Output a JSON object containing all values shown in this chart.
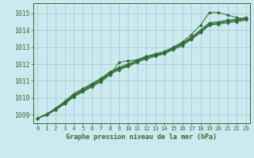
{
  "title": "Graphe pression niveau de la mer (hPa)",
  "bg_color": "#cce8f0",
  "grid_color": "#99cccc",
  "line_color": "#2d6e2d",
  "xlim": [
    -0.5,
    23.5
  ],
  "ylim": [
    1008.5,
    1015.6
  ],
  "yticks": [
    1009,
    1010,
    1011,
    1012,
    1013,
    1014,
    1015
  ],
  "xticks": [
    0,
    1,
    2,
    3,
    4,
    5,
    6,
    7,
    8,
    9,
    10,
    11,
    12,
    13,
    14,
    15,
    16,
    17,
    18,
    19,
    20,
    21,
    22,
    23
  ],
  "series": [
    [
      1008.8,
      1009.0,
      1009.3,
      1009.65,
      1010.05,
      1010.35,
      1010.65,
      1010.95,
      1011.35,
      1012.1,
      1012.2,
      1012.25,
      1012.45,
      1012.55,
      1012.65,
      1013.0,
      1013.3,
      1013.75,
      1014.3,
      1015.05,
      1015.05,
      1014.9,
      1014.75,
      1014.65
    ],
    [
      1008.8,
      1009.0,
      1009.3,
      1009.65,
      1010.1,
      1010.4,
      1010.7,
      1011.0,
      1011.4,
      1011.65,
      1011.85,
      1012.1,
      1012.3,
      1012.45,
      1012.6,
      1012.85,
      1013.1,
      1013.45,
      1013.85,
      1014.3,
      1014.35,
      1014.45,
      1014.5,
      1014.6
    ],
    [
      1008.8,
      1009.0,
      1009.3,
      1009.7,
      1010.15,
      1010.45,
      1010.75,
      1011.05,
      1011.45,
      1011.7,
      1011.9,
      1012.15,
      1012.35,
      1012.5,
      1012.65,
      1012.9,
      1013.15,
      1013.5,
      1013.9,
      1014.35,
      1014.4,
      1014.5,
      1014.55,
      1014.65
    ],
    [
      1008.8,
      1009.0,
      1009.35,
      1009.75,
      1010.2,
      1010.5,
      1010.8,
      1011.1,
      1011.5,
      1011.75,
      1011.95,
      1012.2,
      1012.4,
      1012.55,
      1012.7,
      1012.95,
      1013.2,
      1013.55,
      1013.95,
      1014.4,
      1014.45,
      1014.55,
      1014.6,
      1014.7
    ],
    [
      1008.8,
      1009.05,
      1009.4,
      1009.8,
      1010.25,
      1010.55,
      1010.85,
      1011.15,
      1011.55,
      1011.8,
      1012.0,
      1012.25,
      1012.45,
      1012.6,
      1012.75,
      1013.0,
      1013.25,
      1013.6,
      1014.0,
      1014.45,
      1014.5,
      1014.6,
      1014.65,
      1014.75
    ]
  ]
}
